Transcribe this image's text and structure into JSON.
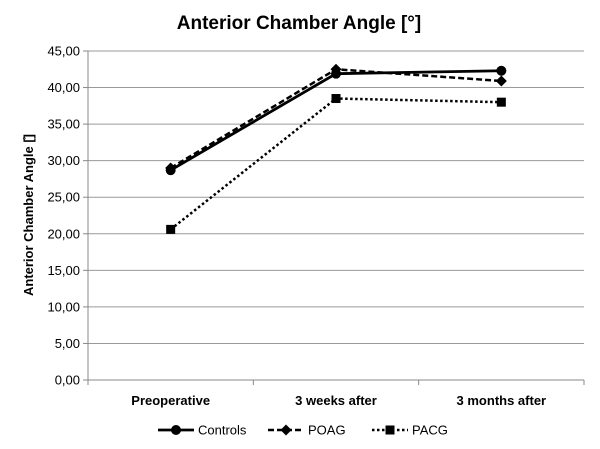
{
  "chart_data": {
    "type": "line",
    "title": "Anterior Chamber Angle [°]",
    "xlabel": "",
    "ylabel": "Anterior Chamber Angle [̊]",
    "categories": [
      "Preoperative",
      "3 weeks after",
      "3 months after"
    ],
    "ylim": [
      0,
      45
    ],
    "yticks": [
      "0,00",
      "5,00",
      "10,00",
      "15,00",
      "20,00",
      "25,00",
      "30,00",
      "35,00",
      "40,00",
      "45,00"
    ],
    "grid": true,
    "legend_position": "bottom",
    "series": [
      {
        "name": "Controls",
        "values": [
          28.7,
          41.9,
          42.3
        ],
        "marker": "circle",
        "dash": "solid",
        "color": "#000000"
      },
      {
        "name": "POAG",
        "values": [
          29.0,
          42.5,
          40.9
        ],
        "marker": "diamond",
        "dash": "dashed",
        "color": "#000000"
      },
      {
        "name": "PACG",
        "values": [
          20.6,
          38.5,
          38.0
        ],
        "marker": "square",
        "dash": "dotted",
        "color": "#000000"
      }
    ]
  }
}
